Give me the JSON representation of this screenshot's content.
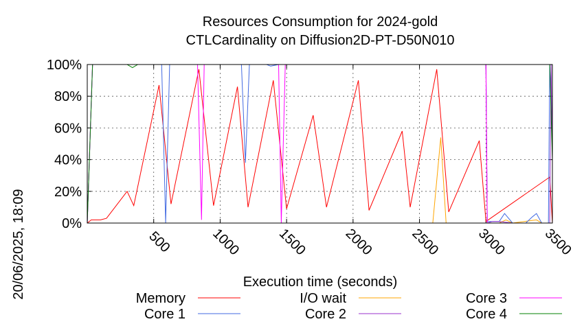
{
  "chart_data": {
    "type": "line",
    "title": "Resources Consumption for 2024-gold",
    "subtitle": "CTLCardinality on Diffusion2D-PT-D50N010",
    "xlabel": "Execution time (seconds)",
    "ylabel": "",
    "side_label": "20/06/2025, 18:09",
    "xlim": [
      0,
      3500
    ],
    "ylim": [
      0,
      100
    ],
    "x_ticks": [
      500,
      1000,
      1500,
      2000,
      2500,
      3000,
      3500
    ],
    "y_ticks": [
      0,
      20,
      40,
      60,
      80,
      100
    ],
    "y_tick_labels": [
      "0%",
      "20%",
      "40%",
      "60%",
      "80%",
      "100%"
    ],
    "grid": true,
    "legend_placement": "bottom",
    "series": [
      {
        "name": "Memory",
        "color": "#ff0000",
        "points": [
          [
            0,
            0
          ],
          [
            30,
            2
          ],
          [
            100,
            2
          ],
          [
            145,
            3
          ],
          [
            300,
            20
          ],
          [
            350,
            11
          ],
          [
            540,
            87
          ],
          [
            630,
            12
          ],
          [
            840,
            97
          ],
          [
            950,
            11
          ],
          [
            1130,
            86
          ],
          [
            1210,
            10
          ],
          [
            1400,
            90
          ],
          [
            1500,
            9
          ],
          [
            1700,
            68
          ],
          [
            1800,
            10
          ],
          [
            2040,
            90
          ],
          [
            2120,
            8
          ],
          [
            2370,
            58
          ],
          [
            2430,
            10
          ],
          [
            2630,
            97
          ],
          [
            2720,
            7
          ],
          [
            2950,
            52
          ],
          [
            3000,
            1
          ],
          [
            3480,
            29
          ],
          [
            3500,
            0
          ]
        ]
      },
      {
        "name": "I/O wait",
        "color": "#ffa500",
        "points": [
          [
            0,
            0
          ],
          [
            2600,
            0
          ],
          [
            2660,
            54
          ],
          [
            2700,
            0
          ],
          [
            3100,
            0
          ],
          [
            3150,
            2
          ],
          [
            3200,
            0
          ],
          [
            3380,
            2
          ],
          [
            3420,
            0
          ],
          [
            3500,
            0
          ]
        ]
      },
      {
        "name": "Core 1",
        "color": "#4169e1",
        "points": [
          [
            0,
            0
          ],
          [
            40,
            100
          ],
          [
            560,
            100
          ],
          [
            590,
            0
          ],
          [
            620,
            100
          ],
          [
            1160,
            100
          ],
          [
            1190,
            38
          ],
          [
            1220,
            100
          ],
          [
            1350,
            100
          ],
          [
            1380,
            99
          ],
          [
            1440,
            100
          ],
          [
            1460,
            100
          ],
          [
            3000,
            100
          ],
          [
            3010,
            1
          ],
          [
            3100,
            1
          ],
          [
            3140,
            6
          ],
          [
            3200,
            0
          ],
          [
            3300,
            0
          ],
          [
            3350,
            4
          ],
          [
            3380,
            6
          ],
          [
            3420,
            0
          ],
          [
            3470,
            0
          ],
          [
            3480,
            100
          ],
          [
            3500,
            60
          ]
        ]
      },
      {
        "name": "Core 2",
        "color": "#9932cc",
        "points": [
          [
            0,
            0
          ],
          [
            40,
            100
          ],
          [
            800,
            100
          ],
          [
            860,
            100
          ],
          [
            3000,
            100
          ],
          [
            3010,
            0
          ],
          [
            3050,
            1
          ],
          [
            3100,
            1
          ],
          [
            3200,
            0
          ],
          [
            3480,
            0
          ],
          [
            3490,
            100
          ],
          [
            3500,
            40
          ]
        ]
      },
      {
        "name": "Core 3",
        "color": "#ff00ff",
        "points": [
          [
            0,
            0
          ],
          [
            40,
            100
          ],
          [
            830,
            100
          ],
          [
            860,
            2
          ],
          [
            880,
            100
          ],
          [
            1440,
            100
          ],
          [
            1460,
            0
          ],
          [
            1490,
            100
          ],
          [
            3000,
            100
          ],
          [
            3010,
            0
          ],
          [
            3500,
            0
          ]
        ]
      },
      {
        "name": "Core 4",
        "color": "#008000",
        "points": [
          [
            0,
            0
          ],
          [
            40,
            100
          ],
          [
            300,
            100
          ],
          [
            340,
            98
          ],
          [
            380,
            100
          ],
          [
            2400,
            100
          ],
          [
            3480,
            100
          ],
          [
            3500,
            40
          ]
        ]
      }
    ]
  }
}
